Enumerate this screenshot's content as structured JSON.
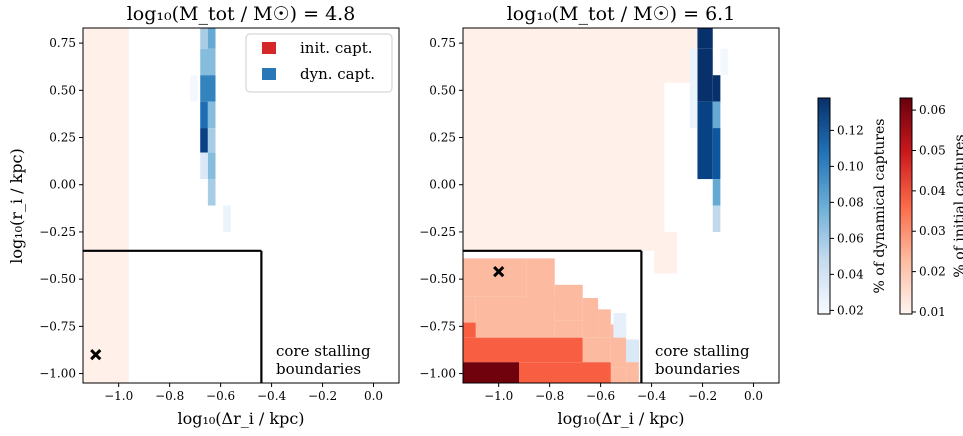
{
  "chart_data": [
    {
      "type": "heatmap",
      "title": "log₁₀(M_tot / M☉) = 4.8",
      "xlabel": "log₁₀(Δr_i / kpc)",
      "ylabel": "log₁₀(r_i / kpc)",
      "xlim": [
        -1.14,
        0.1
      ],
      "ylim": [
        -1.05,
        0.83
      ],
      "xticks": [
        "−1.0",
        "−0.8",
        "−0.6",
        "−0.4",
        "−0.2",
        "0.0"
      ],
      "xtick_values": [
        -1.0,
        -0.8,
        -0.6,
        -0.4,
        -0.2,
        0.0
      ],
      "yticks": [
        "0.75",
        "0.50",
        "0.25",
        "0.00",
        "−0.25",
        "−0.50",
        "−0.75",
        "−1.00"
      ],
      "ytick_values": [
        0.75,
        0.5,
        0.25,
        0.0,
        -0.25,
        -0.5,
        -0.75,
        -1.0
      ],
      "legend": [
        "init. capt.",
        "dyn. capt."
      ],
      "legend_location": "top-right",
      "annotation": [
        "core stalling",
        "boundaries"
      ],
      "core_stalling_boundary": {
        "x_max": -0.44,
        "y_max": -0.35
      },
      "marker": {
        "x": -1.09,
        "y": -0.9
      },
      "initial_captures": [
        {
          "x": [
            -1.14,
            -0.96
          ],
          "y": [
            -1.05,
            0.83
          ],
          "v": 0.011
        }
      ],
      "dynamical_captures": [
        {
          "x": [
            -0.68,
            -0.65
          ],
          "y": [
            0.72,
            0.83
          ],
          "v": 0.06
        },
        {
          "x": [
            -0.65,
            -0.62
          ],
          "y": [
            0.72,
            0.83
          ],
          "v": 0.08
        },
        {
          "x": [
            -0.68,
            -0.62
          ],
          "y": [
            0.58,
            0.72
          ],
          "v": 0.07
        },
        {
          "x": [
            -0.68,
            -0.62
          ],
          "y": [
            0.44,
            0.58
          ],
          "v": 0.1
        },
        {
          "x": [
            -0.68,
            -0.65
          ],
          "y": [
            0.3,
            0.44
          ],
          "v": 0.11
        },
        {
          "x": [
            -0.65,
            -0.62
          ],
          "y": [
            0.3,
            0.44
          ],
          "v": 0.07
        },
        {
          "x": [
            -0.68,
            -0.65
          ],
          "y": [
            0.17,
            0.3
          ],
          "v": 0.13
        },
        {
          "x": [
            -0.65,
            -0.62
          ],
          "y": [
            0.17,
            0.3
          ],
          "v": 0.06
        },
        {
          "x": [
            -0.68,
            -0.65
          ],
          "y": [
            0.03,
            0.17
          ],
          "v": 0.035
        },
        {
          "x": [
            -0.65,
            -0.62
          ],
          "y": [
            0.03,
            0.17
          ],
          "v": 0.07
        },
        {
          "x": [
            -0.65,
            -0.62
          ],
          "y": [
            -0.11,
            0.03
          ],
          "v": 0.06
        },
        {
          "x": [
            -0.59,
            -0.56
          ],
          "y": [
            -0.25,
            -0.11
          ],
          "v": 0.025
        },
        {
          "x": [
            -0.72,
            -0.69
          ],
          "y": [
            0.44,
            0.58
          ],
          "v": 0.021
        }
      ]
    },
    {
      "type": "heatmap",
      "title": "log₁₀(M_tot / M☉) = 6.1",
      "xlabel": "log₁₀(Δr_i / kpc)",
      "ylabel": "",
      "xlim": [
        -1.14,
        0.1
      ],
      "ylim": [
        -1.05,
        0.83
      ],
      "xticks": [
        "−1.0",
        "−0.8",
        "−0.6",
        "−0.4",
        "−0.2",
        "0.0"
      ],
      "xtick_values": [
        -1.0,
        -0.8,
        -0.6,
        -0.4,
        -0.2,
        0.0
      ],
      "yticks": [
        "0.75",
        "0.50",
        "0.25",
        "0.00",
        "−0.25",
        "−0.50",
        "−0.75",
        "−1.00"
      ],
      "ytick_values": [
        0.75,
        0.5,
        0.25,
        0.0,
        -0.25,
        -0.5,
        -0.75,
        -1.0
      ],
      "annotation": [
        "core stalling",
        "boundaries"
      ],
      "core_stalling_boundary": {
        "x_max": -0.44,
        "y_max": -0.35
      },
      "marker": {
        "x": -1.0,
        "y": -0.46
      },
      "initial_captures": [
        {
          "x": [
            -1.14,
            -0.22
          ],
          "y": [
            0.54,
            0.83
          ],
          "v": 0.011
        },
        {
          "x": [
            -1.14,
            -0.35
          ],
          "y": [
            -0.35,
            0.54
          ],
          "v": 0.011
        },
        {
          "x": [
            -0.39,
            -0.3
          ],
          "y": [
            -0.47,
            -0.25
          ],
          "v": 0.011
        },
        {
          "x": [
            -1.14,
            -0.89
          ],
          "y": [
            -0.59,
            -0.39
          ],
          "v": 0.023
        },
        {
          "x": [
            -0.89,
            -0.78
          ],
          "y": [
            -0.67,
            -0.39
          ],
          "v": 0.023
        },
        {
          "x": [
            -0.78,
            -0.67
          ],
          "y": [
            -0.72,
            -0.53
          ],
          "v": 0.023
        },
        {
          "x": [
            -0.67,
            -0.61
          ],
          "y": [
            -0.81,
            -0.6
          ],
          "v": 0.023
        },
        {
          "x": [
            -0.61,
            -0.56
          ],
          "y": [
            -0.81,
            -0.66
          ],
          "v": 0.023
        },
        {
          "x": [
            -0.56,
            -0.5
          ],
          "y": [
            -0.97,
            -0.74
          ],
          "v": 0.023
        },
        {
          "x": [
            -1.09,
            -0.78
          ],
          "y": [
            -0.81,
            -0.59
          ],
          "v": 0.023
        },
        {
          "x": [
            -0.78,
            -0.67
          ],
          "y": [
            -0.81,
            -0.72
          ],
          "v": 0.023
        },
        {
          "x": [
            -1.14,
            -1.09
          ],
          "y": [
            -0.73,
            -0.59
          ],
          "v": 0.023
        },
        {
          "x": [
            -1.14,
            -1.09
          ],
          "y": [
            -0.81,
            -0.73
          ],
          "v": 0.038
        },
        {
          "x": [
            -0.5,
            -0.45
          ],
          "y": [
            -1.05,
            -0.82
          ],
          "v": 0.023
        },
        {
          "x": [
            -0.56,
            -0.5
          ],
          "y": [
            -1.05,
            -0.97
          ],
          "v": 0.023
        },
        {
          "x": [
            -1.14,
            -0.67
          ],
          "y": [
            -0.94,
            -0.81
          ],
          "v": 0.038
        },
        {
          "x": [
            -0.67,
            -0.56
          ],
          "y": [
            -0.94,
            -0.81
          ],
          "v": 0.023
        },
        {
          "x": [
            -0.92,
            -0.56
          ],
          "y": [
            -1.05,
            -0.94
          ],
          "v": 0.038
        },
        {
          "x": [
            -1.14,
            -0.92
          ],
          "y": [
            -1.05,
            -0.94
          ],
          "v": 0.062
        }
      ],
      "dynamical_captures": [
        {
          "x": [
            -0.22,
            -0.16
          ],
          "y": [
            0.72,
            0.83
          ],
          "v": 0.14
        },
        {
          "x": [
            -0.22,
            -0.16
          ],
          "y": [
            0.44,
            0.72
          ],
          "v": 0.14
        },
        {
          "x": [
            -0.16,
            -0.13
          ],
          "y": [
            0.44,
            0.58
          ],
          "v": 0.14
        },
        {
          "x": [
            -0.22,
            -0.16
          ],
          "y": [
            0.03,
            0.44
          ],
          "v": 0.13
        },
        {
          "x": [
            -0.16,
            -0.13
          ],
          "y": [
            0.3,
            0.44
          ],
          "v": 0.08
        },
        {
          "x": [
            -0.16,
            -0.13
          ],
          "y": [
            0.03,
            0.3
          ],
          "v": 0.12
        },
        {
          "x": [
            -0.16,
            -0.13
          ],
          "y": [
            -0.11,
            0.03
          ],
          "v": 0.08
        },
        {
          "x": [
            -0.16,
            -0.13
          ],
          "y": [
            -0.25,
            -0.11
          ],
          "v": 0.05
        },
        {
          "x": [
            -0.25,
            -0.22
          ],
          "y": [
            0.3,
            0.72
          ],
          "v": 0.025
        },
        {
          "x": [
            -0.13,
            -0.1
          ],
          "y": [
            0.58,
            0.72
          ],
          "v": 0.021
        },
        {
          "x": [
            -0.55,
            -0.5
          ],
          "y": [
            -0.81,
            -0.68
          ],
          "v": 0.028
        },
        {
          "x": [
            -0.5,
            -0.45
          ],
          "y": [
            -0.94,
            -0.82
          ],
          "v": 0.035
        }
      ]
    }
  ],
  "colorbars": [
    {
      "label": "% of dynamical captures",
      "cmap": "Blues",
      "vmin": 0.018,
      "vmax": 0.138,
      "ticks": [
        "0.02",
        "0.04",
        "0.06",
        "0.08",
        "0.10",
        "0.12"
      ],
      "tick_values": [
        0.02,
        0.04,
        0.06,
        0.08,
        0.1,
        0.12
      ]
    },
    {
      "label": "% of initial captures",
      "cmap": "Reds",
      "vmin": 0.0095,
      "vmax": 0.063,
      "ticks": [
        "0.01",
        "0.02",
        "0.03",
        "0.04",
        "0.05",
        "0.06"
      ],
      "tick_values": [
        0.01,
        0.02,
        0.03,
        0.04,
        0.05,
        0.06
      ]
    }
  ],
  "colors": {
    "init_legend": "#d62728",
    "dyn_legend": "#2878b8"
  }
}
